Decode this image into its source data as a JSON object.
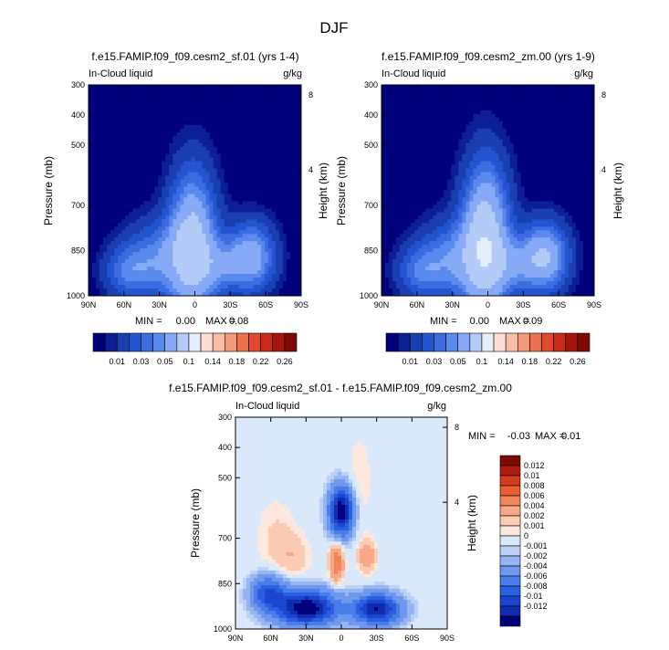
{
  "figure": {
    "title": "DJF"
  },
  "colors": {
    "abs_scale": [
      "#00007d",
      "#0c1f94",
      "#1a3fb0",
      "#2455d0",
      "#3d6be0",
      "#5b8aee",
      "#86aaf5",
      "#b5cbf7",
      "#e4eefc",
      "#fde0d3",
      "#f9bca6",
      "#f4987a",
      "#ee714f",
      "#e0492a",
      "#c72b17",
      "#a5150b",
      "#7d0a04"
    ],
    "diff_scale": [
      "#00007d",
      "#102cb0",
      "#1c46d0",
      "#2a5fe2",
      "#4a7de8",
      "#6e98ee",
      "#96b5f3",
      "#bdd0f7",
      "#dae8fb",
      "#fde8dd",
      "#fbcbb4",
      "#f6a887",
      "#f28559",
      "#ec5e33",
      "#d53a1c",
      "#ae1a0c",
      "#7d0a04"
    ],
    "diff_bg": "#d5e6fb",
    "abs_bg": "#00007d"
  },
  "chart_data": [
    {
      "type": "heatmap",
      "title": "f.e15.FAMIP.f09_f09.cesm2_sf.01 (yrs 1-4)",
      "left_label": "In-Cloud liquid",
      "right_label": "g/kg",
      "ylabel": "Pressure (mb)",
      "y2label": "Height (km)",
      "x_ticks": [
        "90N",
        "60N",
        "30N",
        "0",
        "30S",
        "60S",
        "90S"
      ],
      "y_ticks": [
        "300",
        "400",
        "500",
        "700",
        "850",
        "1000"
      ],
      "y_tick_values": [
        300,
        400,
        500,
        700,
        850,
        1000
      ],
      "y2_ticks": [
        "8",
        "4"
      ],
      "y2_tick_values": [
        8,
        4
      ],
      "xlim": [
        90,
        -90
      ],
      "ylim": [
        300,
        1000
      ],
      "min_label": "MIN =",
      "min_value": "0.00",
      "max_label": "MAX =",
      "max_value": "0.08",
      "features": [
        {
          "lat": 2,
          "p": 830,
          "amp": 0.08,
          "slat": 14,
          "sp": 170
        },
        {
          "lat": 32,
          "p": 880,
          "amp": 0.04,
          "slat": 20,
          "sp": 90
        },
        {
          "lat": -48,
          "p": 870,
          "amp": 0.06,
          "slat": 14,
          "sp": 80
        },
        {
          "lat": 58,
          "p": 920,
          "amp": 0.03,
          "slat": 14,
          "sp": 60
        },
        {
          "lat": -22,
          "p": 900,
          "amp": 0.03,
          "slat": 14,
          "sp": 60
        }
      ]
    },
    {
      "type": "heatmap",
      "title": "f.e15.FAMIP.f09_f09.cesm2_zm.00 (yrs 1-9)",
      "left_label": "In-Cloud liquid",
      "right_label": "g/kg",
      "ylabel": "Pressure (mb)",
      "y2label": "Height (km)",
      "x_ticks": [
        "90N",
        "60N",
        "30N",
        "0",
        "30S",
        "60S",
        "90S"
      ],
      "y_ticks": [
        "300",
        "400",
        "500",
        "700",
        "850",
        "1000"
      ],
      "y_tick_values": [
        300,
        400,
        500,
        700,
        850,
        1000
      ],
      "y2_ticks": [
        "8",
        "4"
      ],
      "y2_tick_values": [
        8,
        4
      ],
      "xlim": [
        90,
        -90
      ],
      "ylim": [
        300,
        1000
      ],
      "min_label": "MIN =",
      "min_value": "0.00",
      "max_label": "MAX =",
      "max_value": "0.09",
      "features": [
        {
          "lat": 2,
          "p": 820,
          "amp": 0.09,
          "slat": 14,
          "sp": 180
        },
        {
          "lat": 32,
          "p": 880,
          "amp": 0.04,
          "slat": 20,
          "sp": 90
        },
        {
          "lat": -48,
          "p": 870,
          "amp": 0.07,
          "slat": 14,
          "sp": 80
        },
        {
          "lat": 58,
          "p": 920,
          "amp": 0.03,
          "slat": 14,
          "sp": 60
        },
        {
          "lat": -22,
          "p": 900,
          "amp": 0.03,
          "slat": 14,
          "sp": 60
        }
      ]
    },
    {
      "type": "heatmap",
      "title": "f.e15.FAMIP.f09_f09.cesm2_sf.01 - f.e15.FAMIP.f09_f09.cesm2_zm.00",
      "left_label": "In-Cloud liquid",
      "right_label": "g/kg",
      "ylabel": "Pressure (mb)",
      "y2label": "Height (km)",
      "x_ticks": [
        "90N",
        "60N",
        "30N",
        "0",
        "30S",
        "60S",
        "90S"
      ],
      "y_ticks": [
        "300",
        "400",
        "500",
        "700",
        "850",
        "1000"
      ],
      "y_tick_values": [
        300,
        400,
        500,
        700,
        850,
        1000
      ],
      "y2_ticks": [
        "8",
        "4"
      ],
      "y2_tick_values": [
        8,
        4
      ],
      "xlim": [
        90,
        -90
      ],
      "ylim": [
        300,
        1000
      ],
      "min_label": "MIN =",
      "min_value": "-0.03",
      "max_label": "MAX =",
      "max_value": "0.01",
      "features": [
        {
          "lat": 0,
          "p": 610,
          "amp": -0.014,
          "slat": 7,
          "sp": 55
        },
        {
          "lat": 30,
          "p": 930,
          "amp": -0.014,
          "slat": 18,
          "sp": 40
        },
        {
          "lat": -30,
          "p": 935,
          "amp": -0.012,
          "slat": 14,
          "sp": 35
        },
        {
          "lat": 62,
          "p": 880,
          "amp": -0.008,
          "slat": 10,
          "sp": 40
        },
        {
          "lat": 4,
          "p": 780,
          "amp": 0.006,
          "slat": 4,
          "sp": 45
        },
        {
          "lat": -22,
          "p": 760,
          "amp": 0.004,
          "slat": 5,
          "sp": 35
        },
        {
          "lat": 55,
          "p": 700,
          "amp": 0.0012,
          "slat": 12,
          "sp": 90
        },
        {
          "lat": -15,
          "p": 520,
          "amp": 0.001,
          "slat": 8,
          "sp": 120
        },
        {
          "lat": 40,
          "p": 760,
          "amp": 0.0015,
          "slat": 10,
          "sp": 50
        }
      ]
    }
  ],
  "colorbar_abs": {
    "labels": [
      "0.01",
      "0.03",
      "0.05",
      "0.1",
      "0.14",
      "0.18",
      "0.22",
      "0.26"
    ],
    "levels": [
      0.005,
      0.01,
      0.02,
      0.03,
      0.04,
      0.05,
      0.07,
      0.1,
      0.12,
      0.14,
      0.16,
      0.18,
      0.2,
      0.22,
      0.24,
      0.26
    ]
  },
  "colorbar_diff": {
    "labels": [
      "0.012",
      "0.01",
      "0.008",
      "0.006",
      "0.004",
      "0.002",
      "0.001",
      "0",
      "-0.001",
      "-0.002",
      "-0.004",
      "-0.006",
      "-0.008",
      "-0.01",
      "-0.012"
    ],
    "levels": [
      -0.012,
      -0.01,
      -0.008,
      -0.006,
      -0.004,
      -0.002,
      -0.001,
      -0.0005,
      0.0005,
      0.001,
      0.002,
      0.004,
      0.006,
      0.008,
      0.01,
      0.012
    ]
  }
}
